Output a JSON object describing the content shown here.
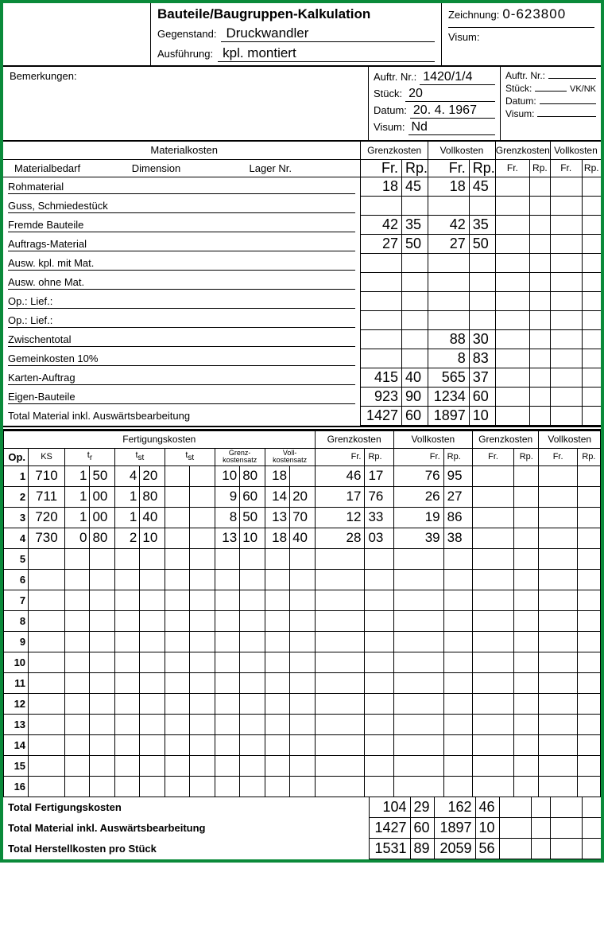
{
  "header": {
    "title": "Bauteile/Baugruppen-Kalkulation",
    "gegenstand_lbl": "Gegenstand:",
    "gegenstand_val": "Druckwandler",
    "ausfuehrung_lbl": "Ausführung:",
    "ausfuehrung_val": "kpl. montiert",
    "zeichnung_lbl": "Zeichnung:",
    "zeichnung_val": "0-623800",
    "visum_lbl": "Visum:"
  },
  "info": {
    "bemerkungen_lbl": "Bemerkungen:",
    "mid": {
      "auftrnr_lbl": "Auftr. Nr.:",
      "auftrnr_val": "1420/1/4",
      "stueck_lbl": "Stück:",
      "stueck_val": "20",
      "datum_lbl": "Datum:",
      "datum_val": "20. 4. 1967",
      "visum_lbl": "Visum:",
      "visum_val": "Nd"
    },
    "right": {
      "auftrnr_lbl": "Auftr. Nr.:",
      "stueck_lbl": "Stück:",
      "vknk": "VK/NK",
      "datum_lbl": "Datum:",
      "visum_lbl": "Visum:"
    }
  },
  "mat": {
    "section": "Materialkosten",
    "grenz": "Grenzkosten",
    "voll": "Vollkosten",
    "matbedarf": "Materialbedarf",
    "dim": "Dimension",
    "lager": "Lager Nr.",
    "fr": "Fr.",
    "rp": "Rp.",
    "rows": [
      {
        "label": "Rohmaterial",
        "gfr": "18",
        "grp": "45",
        "vfr": "18",
        "vrp": "45",
        "ul": true
      },
      {
        "label": "Guss, Schmiedestück",
        "gfr": "",
        "grp": "",
        "vfr": "",
        "vrp": "",
        "ul": true
      },
      {
        "label": "Fremde Bauteile",
        "gfr": "42",
        "grp": "35",
        "vfr": "42",
        "vrp": "35",
        "ul": true
      },
      {
        "label": "Auftrags-Material",
        "gfr": "27",
        "grp": "50",
        "vfr": "27",
        "vrp": "50",
        "ul": true
      },
      {
        "label": "Ausw. kpl. mit Mat.",
        "gfr": "",
        "grp": "",
        "vfr": "",
        "vrp": "",
        "ul": true
      },
      {
        "label": "Ausw. ohne Mat.",
        "gfr": "",
        "grp": "",
        "vfr": "",
        "vrp": "",
        "ul": true
      },
      {
        "label": "Op.:        Lief.:",
        "gfr": "",
        "grp": "",
        "vfr": "",
        "vrp": "",
        "ul": true
      },
      {
        "label": "Op.:        Lief.:",
        "gfr": "",
        "grp": "",
        "vfr": "",
        "vrp": "",
        "ul": true
      },
      {
        "label": "Zwischentotal",
        "gfr": "",
        "grp": "",
        "vfr": "88",
        "vrp": "30",
        "ul": true
      },
      {
        "label": "Gemeinkosten 10%",
        "gfr": "",
        "grp": "",
        "vfr": "8",
        "vrp": "83",
        "ul": true
      },
      {
        "label": "Karten-Auftrag",
        "gfr": "415",
        "grp": "40",
        "vfr": "565",
        "vrp": "37",
        "ul": true
      },
      {
        "label": "Eigen-Bauteile",
        "gfr": "923",
        "grp": "90",
        "vfr": "1234",
        "vrp": "60",
        "ul": true
      },
      {
        "label": "Total Material inkl. Auswärtsbearbeitung",
        "gfr": "1427",
        "grp": "60",
        "vfr": "1897",
        "vrp": "10",
        "ul": false
      }
    ]
  },
  "fert": {
    "section": "Fertigungskosten",
    "hdr": {
      "op": "Op.",
      "ks": "KS",
      "tr": "t",
      "trs": "r",
      "tst": "t",
      "tsts": "st",
      "grenz": "Grenz-\nkostensatz",
      "voll": "Voll-\nkostensatz",
      "grenzK": "Grenzkosten",
      "vollK": "Vollkosten",
      "fr": "Fr.",
      "rp": "Rp."
    },
    "rows": [
      {
        "op": "1",
        "ks": "710",
        "tr1": "1",
        "tr2": "50",
        "tst1": "4",
        "tst2": "20",
        "ts21": "",
        "ts22": "",
        "g1": "10",
        "g2": "80",
        "v1": "18",
        "v2": "",
        "gfr": "46",
        "grp": "17",
        "vfr": "76",
        "vrp": "95"
      },
      {
        "op": "2",
        "ks": "711",
        "tr1": "1",
        "tr2": "00",
        "tst1": "1",
        "tst2": "80",
        "ts21": "",
        "ts22": "",
        "g1": "9",
        "g2": "60",
        "v1": "14",
        "v2": "20",
        "gfr": "17",
        "grp": "76",
        "vfr": "26",
        "vrp": "27"
      },
      {
        "op": "3",
        "ks": "720",
        "tr1": "1",
        "tr2": "00",
        "tst1": "1",
        "tst2": "40",
        "ts21": "",
        "ts22": "",
        "g1": "8",
        "g2": "50",
        "v1": "13",
        "v2": "70",
        "gfr": "12",
        "grp": "33",
        "vfr": "19",
        "vrp": "86"
      },
      {
        "op": "4",
        "ks": "730",
        "tr1": "0",
        "tr2": "80",
        "tst1": "2",
        "tst2": "10",
        "ts21": "",
        "ts22": "",
        "g1": "13",
        "g2": "10",
        "v1": "18",
        "v2": "40",
        "gfr": "28",
        "grp": "03",
        "vfr": "39",
        "vrp": "38"
      },
      {
        "op": "5"
      },
      {
        "op": "6"
      },
      {
        "op": "7"
      },
      {
        "op": "8"
      },
      {
        "op": "9"
      },
      {
        "op": "10"
      },
      {
        "op": "11"
      },
      {
        "op": "12"
      },
      {
        "op": "13"
      },
      {
        "op": "14"
      },
      {
        "op": "15"
      },
      {
        "op": "16"
      }
    ]
  },
  "totals": {
    "rows": [
      {
        "label": "Total Fertigungskosten",
        "gfr": "104",
        "grp": "29",
        "vfr": "162",
        "vrp": "46"
      },
      {
        "label": "Total Material inkl. Auswärtsbearbeitung",
        "gfr": "1427",
        "grp": "60",
        "vfr": "1897",
        "vrp": "10"
      },
      {
        "label": "Total Herstellkosten pro Stück",
        "gfr": "1531",
        "grp": "89",
        "vfr": "2059",
        "vrp": "56"
      }
    ]
  }
}
